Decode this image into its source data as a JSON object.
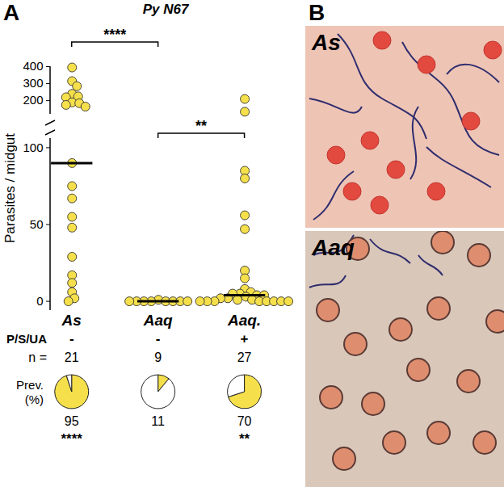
{
  "panel_label": "A",
  "chart_data": {
    "type": "scatter",
    "title": "Py N67",
    "y_label": "Parasites / midgut",
    "categories": [
      "As",
      "Aaq",
      "Aaq."
    ],
    "points": [
      [
        395,
        315,
        285,
        240,
        225,
        220,
        190,
        185,
        175,
        165,
        90,
        75,
        67,
        55,
        48,
        29,
        17,
        12,
        6,
        2,
        0
      ],
      [
        1,
        0,
        0,
        0,
        0,
        0,
        0,
        0,
        0
      ],
      [
        210,
        135,
        85,
        80,
        56,
        47,
        20,
        15,
        8,
        6,
        5,
        5,
        4,
        4,
        3,
        2,
        2,
        1,
        1,
        0,
        0,
        0,
        0,
        0,
        0,
        0,
        0
      ]
    ],
    "medians": [
      90,
      0,
      4
    ],
    "color": "#f5e04c",
    "ylim": [
      -6,
      106
    ],
    "yticks": [
      0,
      50,
      100
    ],
    "upper_ylim": [
      120,
      400
    ],
    "upper_yticks": [
      200,
      300,
      400
    ],
    "significance": [
      {
        "between": [
          "As",
          "Aaq"
        ],
        "label": "****"
      },
      {
        "between": [
          "Aaq",
          "Aaq."
        ],
        "label": "**"
      }
    ],
    "treatment_label": "P/S/UA",
    "treatment": [
      "-",
      "-",
      "+"
    ],
    "n_label": "n =",
    "n": [
      21,
      9,
      27
    ],
    "prevalence_label": [
      "Prev.",
      "(%)"
    ],
    "prevalence": [
      95,
      11,
      70
    ],
    "prevalence_colors": [
      "#f5e04c",
      "#ffffff"
    ],
    "prevalence_stars": [
      "****",
      null,
      "**"
    ]
  },
  "panel_B": {
    "label": "B",
    "images": [
      "As",
      "Aaq"
    ]
  }
}
